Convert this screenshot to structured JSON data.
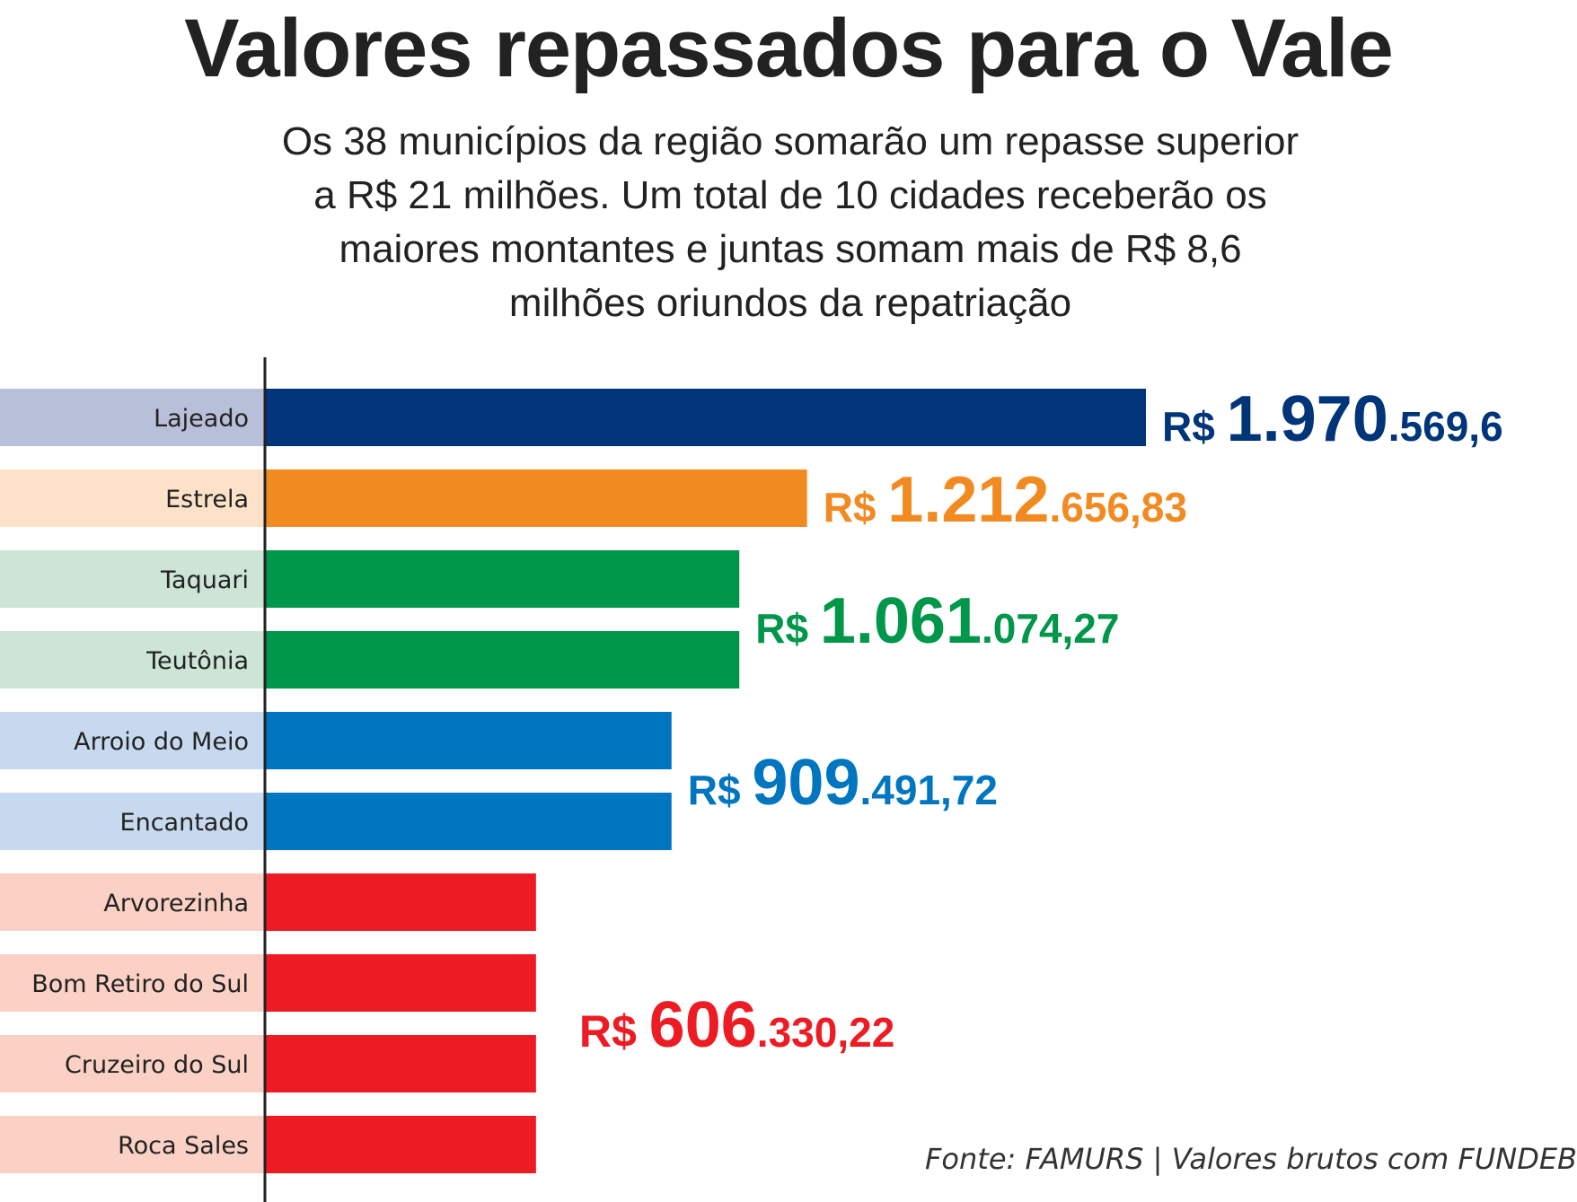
{
  "title": "Valores repassados para o Vale",
  "subtitle": "Os 38 municípios da região somarão um repasse superior a R$ 21 milhões. Um total de 10 cidades receberão os maiores montantes e juntas somam mais de R$ 8,6 milhões oriundos da repatriação",
  "source": "Fonte: FAMURS | Valores brutos com FUNDEB",
  "chart_data": {
    "type": "bar",
    "orientation": "horizontal",
    "title": "Valores repassados para o Vale",
    "xlabel": "",
    "ylabel": "",
    "xlim": [
      0,
      1970569.6
    ],
    "grid": false,
    "legend": "none",
    "categories": [
      "Lajeado",
      "Estrela",
      "Taquari",
      "Teutônia",
      "Arroio do Meio",
      "Encantado",
      "Arvorezinha",
      "Bom Retiro do Sul",
      "Cruzeiro do Sul",
      "Roca Sales"
    ],
    "values": [
      1970569.6,
      1212656.83,
      1061074.27,
      1061074.27,
      909491.72,
      909491.72,
      606330.22,
      606330.22,
      606330.22,
      606330.22
    ],
    "bar_colors": [
      "#00357a",
      "#f18a21",
      "#00974a",
      "#00974a",
      "#0076c0",
      "#0076c0",
      "#ed1c24",
      "#ed1c24",
      "#ed1c24",
      "#ed1c24"
    ],
    "label_bg_colors": [
      "#b8bfd9",
      "#fde2c9",
      "#cce5d6",
      "#cce5d6",
      "#c7d9ef",
      "#c7d9ef",
      "#fad1c4",
      "#fad1c4",
      "#fad1c4",
      "#fad1c4"
    ],
    "value_labels": [
      {
        "prefix": "R$ ",
        "big": "1.970",
        "small": ".569,6",
        "color": "#00357a"
      },
      {
        "prefix": "R$ ",
        "big": "1.212",
        "small": ".656,83",
        "color": "#f18a21"
      },
      {
        "prefix": "R$ ",
        "big": "1.061",
        "small": ".074,27",
        "color": "#00974a"
      },
      {
        "prefix": "R$ ",
        "big": "909",
        "small": ".491,72",
        "color": "#0076c0"
      },
      {
        "prefix": "R$ ",
        "big": "606",
        "small": ".330,22",
        "color": "#ed1c24"
      }
    ]
  }
}
